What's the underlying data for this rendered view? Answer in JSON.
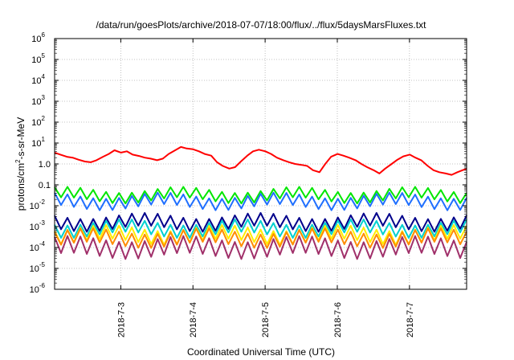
{
  "chart_data": {
    "type": "line",
    "title": "/data/run/goesPlots/archive/2018-07-07/18:00/flux/../flux/5daysMarsFluxes.txt",
    "xlabel": "Coordinated Universal Time (UTC)",
    "ylabel": "protons/cm2-s-sr-MeV",
    "ylabel_base": "protons/cm",
    "ylabel_sup": "2",
    "ylabel_rest": "-s-sr-MeV",
    "yscale": "log",
    "ylim": [
      1e-06,
      1000000.0
    ],
    "xlim": [
      "2018-07-02 02:00",
      "2018-07-07 19:00"
    ],
    "grid": true,
    "x_ticks": [
      {
        "label": "2018-7-3",
        "x": "2018-07-03 00:00"
      },
      {
        "label": "2018-7-4",
        "x": "2018-07-04 00:00"
      },
      {
        "label": "2018-7-5",
        "x": "2018-07-05 00:00"
      },
      {
        "label": "2018-7-6",
        "x": "2018-07-06 00:00"
      },
      {
        "label": "2018-7-7",
        "x": "2018-07-07 00:00"
      }
    ],
    "y_ticks": [
      {
        "base": "10",
        "exp": "-6",
        "value": 1e-06
      },
      {
        "base": "10",
        "exp": "-5",
        "value": 1e-05
      },
      {
        "base": "10",
        "exp": "-4",
        "value": 0.0001
      },
      {
        "base": "10",
        "exp": "-3",
        "value": 0.001
      },
      {
        "base": "10",
        "exp": "-2",
        "value": 0.01
      },
      {
        "base": "0.1",
        "exp": "",
        "value": 0.1
      },
      {
        "base": "1.0",
        "exp": "",
        "value": 1
      },
      {
        "base": "10",
        "exp": "1",
        "value": 10
      },
      {
        "base": "10",
        "exp": "2",
        "value": 100
      },
      {
        "base": "10",
        "exp": "3",
        "value": 1000
      },
      {
        "base": "10",
        "exp": "4",
        "value": 10000
      },
      {
        "base": "10",
        "exp": "5",
        "value": 100000
      },
      {
        "base": "10",
        "exp": "6",
        "value": 1000000
      }
    ],
    "series": [
      {
        "color": "#ff0000",
        "x_days": [
          0.0,
          0.08,
          0.17,
          0.25,
          0.33,
          0.42,
          0.5,
          0.58,
          0.67,
          0.75,
          0.83,
          0.92,
          1.0,
          1.08,
          1.17,
          1.25,
          1.33,
          1.42,
          1.5,
          1.58,
          1.67,
          1.75,
          1.83,
          1.92,
          2.0,
          2.08,
          2.17,
          2.25,
          2.33,
          2.42,
          2.5,
          2.58,
          2.67,
          2.75,
          2.83,
          2.92,
          3.0,
          3.08,
          3.17,
          3.25,
          3.33,
          3.42,
          3.5,
          3.58,
          3.67,
          3.75,
          3.83,
          3.92,
          4.0,
          4.08,
          4.17,
          4.25,
          4.33,
          4.42,
          4.5,
          4.58,
          4.67,
          4.75,
          4.83,
          4.92,
          5.0,
          5.08,
          5.17,
          5.25,
          5.33,
          5.42,
          5.5,
          5.58,
          5.71
        ],
        "values": [
          3.5,
          2.8,
          2.2,
          2.0,
          1.6,
          1.3,
          1.2,
          1.5,
          2.2,
          3.0,
          4.5,
          3.5,
          4.0,
          2.8,
          2.4,
          2.0,
          1.8,
          1.5,
          1.8,
          3.0,
          4.5,
          6.5,
          5.5,
          5.0,
          4.0,
          3.0,
          2.5,
          1.2,
          0.8,
          0.6,
          0.7,
          1.3,
          2.5,
          4.0,
          4.8,
          4.0,
          3.0,
          2.0,
          1.5,
          1.2,
          1.0,
          0.9,
          0.8,
          0.5,
          0.4,
          1.0,
          2.2,
          3.0,
          2.5,
          2.0,
          1.5,
          1.0,
          0.7,
          0.5,
          0.35,
          0.6,
          1.0,
          1.6,
          2.3,
          2.8,
          2.0,
          1.5,
          0.8,
          0.5,
          0.4,
          0.35,
          0.3,
          0.4,
          0.6
        ]
      },
      {
        "color": "#00e600",
        "base": 0.032,
        "amp": 0.5
      },
      {
        "color": "#1f6fff",
        "base": 0.016,
        "amp": 0.55
      },
      {
        "color": "#00008b",
        "base": 0.0016,
        "amp": 0.6
      },
      {
        "color": "#00d0d0",
        "base": 0.0008,
        "amp": 0.6
      },
      {
        "color": "#ffee00",
        "base": 0.0004,
        "amp": 0.65
      },
      {
        "color": "#ff8c00",
        "base": 0.00028,
        "amp": 0.65
      },
      {
        "color": "#a0306a",
        "base": 0.0001,
        "amp": 0.8
      }
    ]
  }
}
